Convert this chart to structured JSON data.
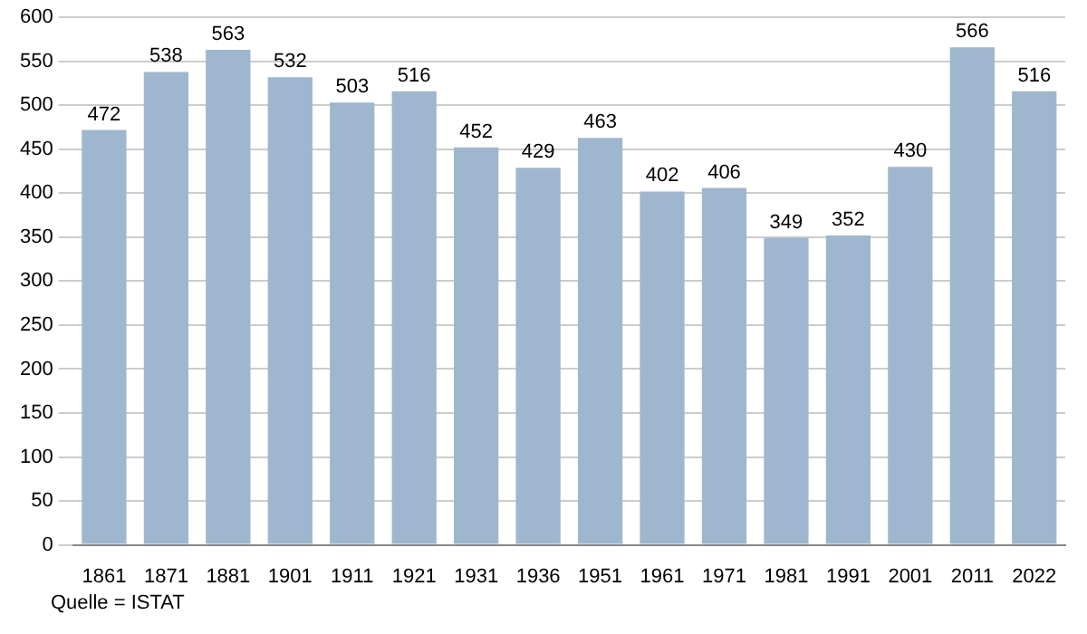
{
  "chart_data": {
    "type": "bar",
    "categories": [
      "1861",
      "1871",
      "1881",
      "1901",
      "1911",
      "1921",
      "1931",
      "1936",
      "1951",
      "1961",
      "1971",
      "1981",
      "1991",
      "2001",
      "2011",
      "2022"
    ],
    "values": [
      472,
      538,
      563,
      532,
      503,
      516,
      452,
      429,
      463,
      402,
      406,
      349,
      352,
      430,
      566,
      516
    ],
    "color": "#9fb6cf",
    "ylim": [
      0,
      600
    ],
    "yticks": [
      0,
      50,
      100,
      150,
      200,
      250,
      300,
      350,
      400,
      450,
      500,
      550,
      600
    ],
    "grid": "y",
    "data_labels": true,
    "annotations": [
      "Quelle = ISTAT"
    ]
  }
}
